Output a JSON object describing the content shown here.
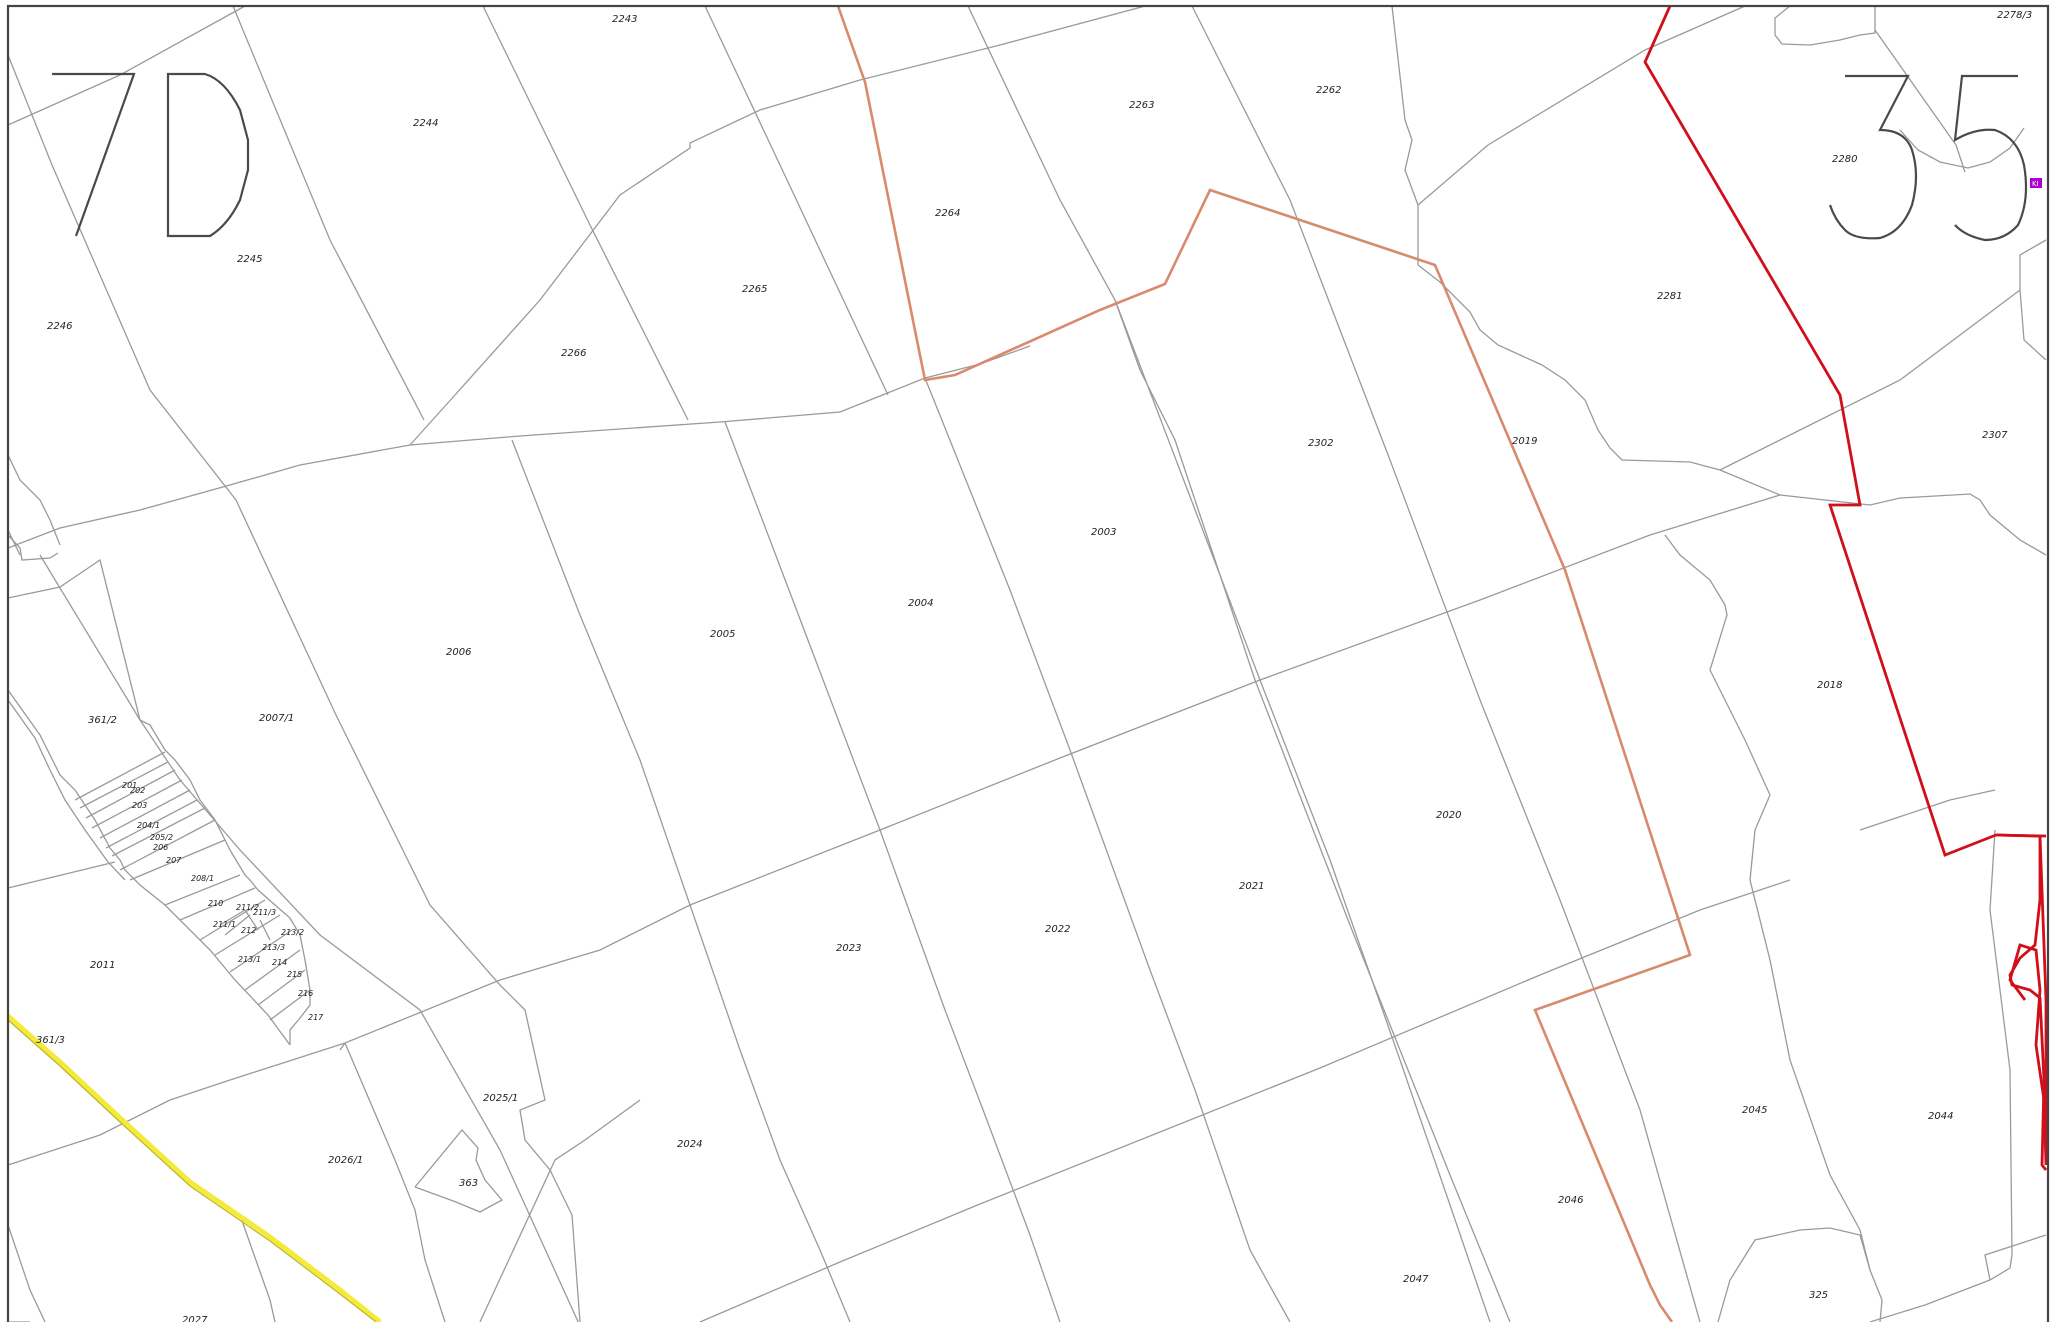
{
  "sheet": {
    "left_code": "7D",
    "right_code": "35"
  },
  "colors": {
    "boundary": "#9a9a9a",
    "orange_line": "#d98a6c",
    "red_line": "#d10f1a",
    "road": "#f3ea3a",
    "marker": "#b000d0"
  },
  "parcels": [
    "2243",
    "2244",
    "2245",
    "2246",
    "2262",
    "2263",
    "2264",
    "2265",
    "2266",
    "2278/3",
    "2280",
    "2281",
    "2307",
    "2302",
    "2003",
    "2004",
    "2005",
    "2006",
    "2007/1",
    "2011",
    "2018",
    "2019",
    "2020",
    "2021",
    "2022",
    "2023",
    "2024",
    "2025/1",
    "2026/1",
    "2027",
    "2045",
    "2044",
    "2046",
    "2047",
    "325",
    "363",
    "361/2",
    "361/3",
    "201",
    "202",
    "203",
    "204/1",
    "205/2",
    "206",
    "207",
    "208/1",
    "210",
    "211/1",
    "211/2",
    "211/3",
    "212",
    "213/1",
    "213/2",
    "213/3",
    "214",
    "215",
    "216",
    "217"
  ],
  "marker": {
    "icon": "boundary-marker-icon",
    "label": "KI"
  }
}
